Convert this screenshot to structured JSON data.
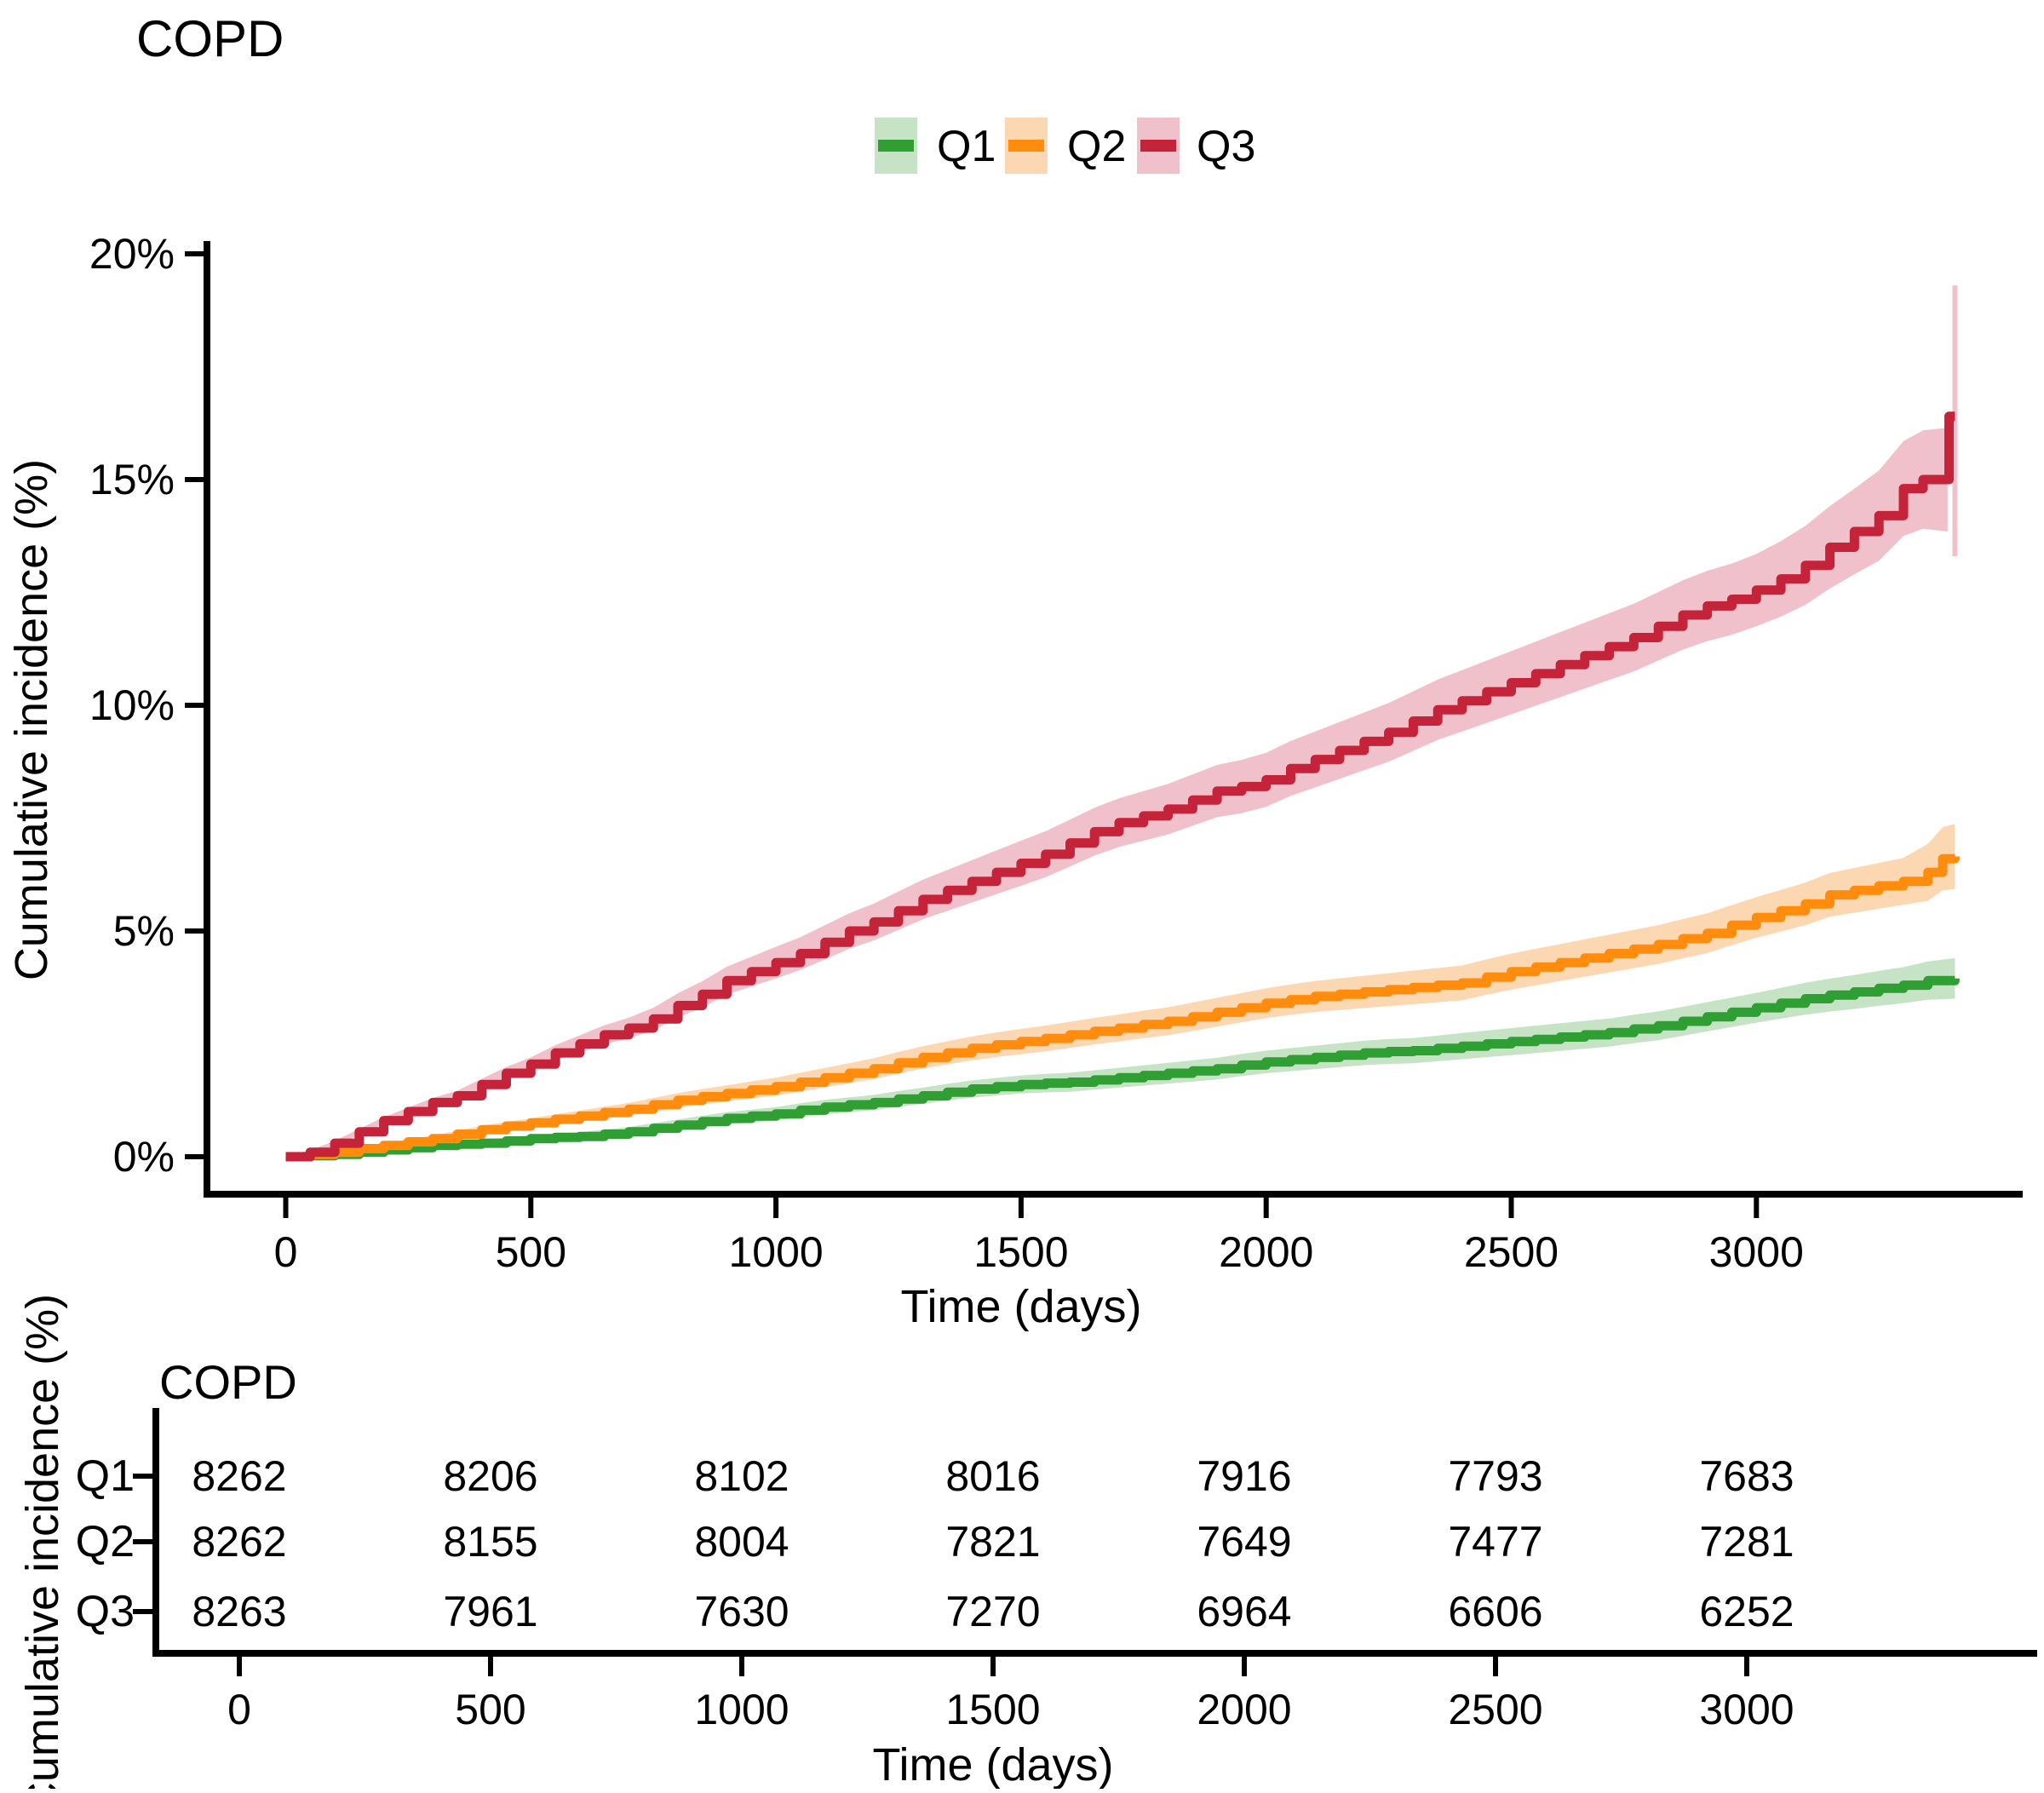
{
  "figure": {
    "background": "#ffffff",
    "text_color": "#000000",
    "axis_color": "#000000"
  },
  "chart_data": [
    {
      "type": "line",
      "title": "COPD",
      "xlabel": "Time (days)",
      "ylabel": "Cumulative incidence (%)",
      "x_ticks": [
        0,
        500,
        1000,
        1500,
        2000,
        2500,
        3000
      ],
      "y_ticks": [
        0,
        5,
        10,
        15,
        20
      ],
      "y_tick_labels": [
        "0%",
        "5%",
        "10%",
        "15%",
        "20%"
      ],
      "xlim": [
        0,
        3550
      ],
      "ylim": [
        0,
        20
      ],
      "grid": false,
      "legend_position": "top-center",
      "curve_style": "step-after with confidence bands",
      "series": [
        {
          "name": "Q1",
          "color": "#2f9e33",
          "band_color": "#c6e3c6",
          "days": [
            0,
            50,
            100,
            150,
            200,
            250,
            300,
            350,
            400,
            450,
            500,
            550,
            600,
            650,
            700,
            750,
            800,
            850,
            900,
            950,
            1000,
            1050,
            1100,
            1150,
            1200,
            1250,
            1300,
            1350,
            1400,
            1450,
            1500,
            1550,
            1600,
            1650,
            1700,
            1750,
            1800,
            1850,
            1900,
            1950,
            2000,
            2050,
            2100,
            2150,
            2200,
            2250,
            2300,
            2350,
            2400,
            2450,
            2500,
            2550,
            2600,
            2650,
            2700,
            2750,
            2800,
            2850,
            2900,
            2950,
            3000,
            3050,
            3100,
            3150,
            3200,
            3250,
            3300,
            3350,
            3405
          ],
          "pct": [
            0,
            0.02,
            0.05,
            0.1,
            0.15,
            0.2,
            0.25,
            0.28,
            0.3,
            0.35,
            0.4,
            0.43,
            0.45,
            0.5,
            0.55,
            0.63,
            0.7,
            0.78,
            0.85,
            0.9,
            0.95,
            1.03,
            1.1,
            1.15,
            1.2,
            1.28,
            1.35,
            1.43,
            1.5,
            1.55,
            1.6,
            1.63,
            1.65,
            1.7,
            1.75,
            1.8,
            1.85,
            1.9,
            1.95,
            2.03,
            2.1,
            2.15,
            2.2,
            2.25,
            2.3,
            2.33,
            2.35,
            2.4,
            2.45,
            2.5,
            2.55,
            2.6,
            2.65,
            2.7,
            2.75,
            2.83,
            2.9,
            3.0,
            3.1,
            3.2,
            3.3,
            3.4,
            3.5,
            3.58,
            3.65,
            3.73,
            3.8,
            3.9,
            3.95
          ],
          "ci_anchor_days": [
            0,
            500,
            1000,
            1500,
            2000,
            2500,
            3000,
            3300,
            3405
          ],
          "ci_half_width": [
            0.02,
            0.08,
            0.15,
            0.2,
            0.25,
            0.3,
            0.33,
            0.4,
            0.45
          ],
          "band_end_day": 3405,
          "final_ci_bar": null
        },
        {
          "name": "Q2",
          "color": "#ff8c0d",
          "band_color": "#fcd8b2",
          "days": [
            0,
            50,
            100,
            150,
            200,
            250,
            300,
            350,
            400,
            450,
            500,
            550,
            600,
            650,
            700,
            750,
            800,
            850,
            900,
            950,
            1000,
            1050,
            1100,
            1150,
            1200,
            1250,
            1300,
            1350,
            1400,
            1450,
            1500,
            1550,
            1600,
            1650,
            1700,
            1750,
            1800,
            1850,
            1900,
            1950,
            2000,
            2050,
            2100,
            2150,
            2200,
            2250,
            2300,
            2350,
            2400,
            2450,
            2500,
            2550,
            2600,
            2650,
            2700,
            2750,
            2800,
            2850,
            2900,
            2950,
            3000,
            3050,
            3100,
            3150,
            3200,
            3250,
            3300,
            3350,
            3380,
            3405
          ],
          "pct": [
            0,
            0.05,
            0.1,
            0.18,
            0.25,
            0.33,
            0.4,
            0.5,
            0.6,
            0.68,
            0.75,
            0.83,
            0.9,
            0.98,
            1.05,
            1.15,
            1.25,
            1.33,
            1.4,
            1.48,
            1.55,
            1.65,
            1.75,
            1.85,
            1.95,
            2.08,
            2.2,
            2.3,
            2.4,
            2.48,
            2.55,
            2.62,
            2.7,
            2.78,
            2.85,
            2.93,
            3.0,
            3.1,
            3.2,
            3.3,
            3.4,
            3.48,
            3.55,
            3.6,
            3.65,
            3.7,
            3.75,
            3.8,
            3.85,
            3.98,
            4.1,
            4.2,
            4.3,
            4.4,
            4.5,
            4.6,
            4.7,
            4.83,
            4.95,
            5.13,
            5.3,
            5.45,
            5.6,
            5.8,
            5.9,
            6.0,
            6.1,
            6.3,
            6.6,
            6.65
          ],
          "ci_anchor_days": [
            0,
            500,
            1000,
            1500,
            2000,
            2500,
            3000,
            3300,
            3380,
            3405
          ],
          "ci_half_width": [
            0.02,
            0.1,
            0.2,
            0.28,
            0.33,
            0.4,
            0.45,
            0.52,
            0.7,
            0.72
          ],
          "band_end_day": 3405,
          "final_ci_bar": null
        },
        {
          "name": "Q3",
          "color": "#c52339",
          "band_color": "#f0c1cb",
          "days": [
            0,
            50,
            100,
            150,
            200,
            250,
            300,
            350,
            400,
            450,
            500,
            550,
            600,
            650,
            700,
            750,
            800,
            850,
            900,
            950,
            1000,
            1050,
            1100,
            1150,
            1200,
            1250,
            1300,
            1350,
            1400,
            1450,
            1500,
            1550,
            1600,
            1650,
            1700,
            1750,
            1800,
            1850,
            1900,
            1950,
            2000,
            2050,
            2100,
            2150,
            2200,
            2250,
            2300,
            2350,
            2400,
            2450,
            2500,
            2550,
            2600,
            2650,
            2700,
            2750,
            2800,
            2850,
            2900,
            2950,
            3000,
            3050,
            3100,
            3150,
            3200,
            3250,
            3300,
            3340,
            3390,
            3393,
            3405
          ],
          "pct": [
            0,
            0.1,
            0.3,
            0.55,
            0.8,
            1.0,
            1.2,
            1.35,
            1.6,
            1.85,
            2.05,
            2.3,
            2.5,
            2.7,
            2.85,
            3.05,
            3.35,
            3.6,
            3.9,
            4.1,
            4.3,
            4.5,
            4.75,
            5.0,
            5.2,
            5.45,
            5.7,
            5.9,
            6.1,
            6.3,
            6.5,
            6.7,
            6.95,
            7.2,
            7.4,
            7.55,
            7.7,
            7.9,
            8.1,
            8.2,
            8.35,
            8.6,
            8.8,
            9.0,
            9.2,
            9.4,
            9.65,
            9.9,
            10.1,
            10.3,
            10.5,
            10.7,
            10.9,
            11.1,
            11.3,
            11.5,
            11.75,
            12.0,
            12.2,
            12.35,
            12.55,
            12.8,
            13.1,
            13.5,
            13.85,
            14.2,
            14.8,
            15.0,
            15.0,
            16.4,
            16.4
          ],
          "ci_anchor_days": [
            0,
            500,
            1000,
            1500,
            2000,
            2500,
            3000,
            3200,
            3350,
            3390
          ],
          "ci_half_width": [
            0.03,
            0.15,
            0.35,
            0.5,
            0.6,
            0.7,
            0.8,
            0.95,
            1.1,
            1.15
          ],
          "band_end_day": 3390,
          "final_ci_bar": {
            "day": 3405,
            "lo": 13.3,
            "hi": 19.3
          }
        }
      ]
    },
    {
      "type": "table",
      "title": "COPD",
      "xlabel": "Time (days)",
      "ylabel": "Cumulative incidence (%)",
      "x_ticks": [
        0,
        500,
        1000,
        1500,
        2000,
        2500,
        3000
      ],
      "rows": [
        {
          "label": "Q1",
          "color": "#2f9e33",
          "values": [
            8262,
            8206,
            8102,
            8016,
            7916,
            7793,
            7683
          ]
        },
        {
          "label": "Q2",
          "color": "#ff8c0d",
          "values": [
            8262,
            8155,
            8004,
            7821,
            7649,
            7477,
            7281
          ]
        },
        {
          "label": "Q3",
          "color": "#c52339",
          "values": [
            8263,
            7961,
            7630,
            7270,
            6964,
            6606,
            6252
          ]
        }
      ]
    }
  ]
}
